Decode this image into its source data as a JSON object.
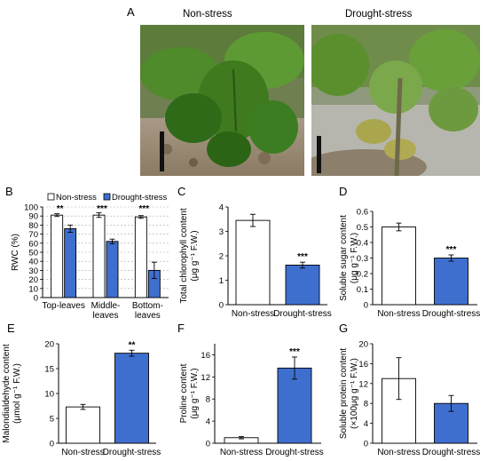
{
  "colors": {
    "nonstress": "#ffffff",
    "drought": "#3f6fce",
    "axis": "#000000"
  },
  "panel_A": {
    "letter": "A",
    "left_title": "Non-stress",
    "right_title": "Drought-stress"
  },
  "chart_data": [
    {
      "id": "B",
      "letter": "B",
      "type": "bar",
      "categories": [
        [
          "Top-leaves"
        ],
        [
          "Middle-",
          "leaves"
        ],
        [
          "Bottom-",
          "leaves"
        ]
      ],
      "series": [
        {
          "name": "Non-stress",
          "values": [
            91,
            91,
            89
          ],
          "errors": [
            1.5,
            2.5,
            1.5
          ]
        },
        {
          "name": "Drought-stress",
          "values": [
            76,
            62,
            30
          ],
          "errors": [
            4,
            2.5,
            9
          ]
        }
      ],
      "significance": [
        "**",
        "***",
        "***"
      ],
      "ylabel": [
        "RWC (%)"
      ],
      "ylim": [
        0,
        100
      ],
      "yticks": [
        0,
        10,
        20,
        30,
        40,
        50,
        60,
        70,
        80,
        90,
        100
      ],
      "grid": true,
      "legend": "top",
      "legend_labels": [
        "Non-stress",
        "Drought-stress"
      ]
    },
    {
      "id": "C",
      "letter": "C",
      "type": "bar",
      "categories": [
        "Non-stress",
        "Drought-stress"
      ],
      "values": [
        3.45,
        1.62
      ],
      "errors": [
        0.25,
        0.12
      ],
      "significance": [
        "",
        "***"
      ],
      "ylabel": [
        "Total chlorophyll content",
        "(μg g⁻¹ F.W.)"
      ],
      "ylim": [
        0,
        4
      ],
      "yticks": [
        0,
        1,
        2,
        3,
        4
      ]
    },
    {
      "id": "D",
      "letter": "D",
      "type": "bar",
      "categories": [
        "Non-stress",
        "Drought-stress"
      ],
      "values": [
        0.5,
        0.3
      ],
      "errors": [
        0.025,
        0.02
      ],
      "significance": [
        "",
        "***"
      ],
      "ylabel": [
        "Soluble sugar content",
        "(μg g⁻¹ F.W.)"
      ],
      "ylim": [
        0,
        0.6
      ],
      "yticks": [
        "0",
        "0.1",
        "0.2",
        "0.3",
        "0.4",
        "0.5",
        "0.6"
      ]
    },
    {
      "id": "E",
      "letter": "E",
      "type": "bar",
      "categories": [
        "Non-stress",
        "Drought-stress"
      ],
      "values": [
        7.3,
        18.1
      ],
      "errors": [
        0.5,
        0.6
      ],
      "significance": [
        "",
        "**"
      ],
      "ylabel": [
        "Malondialdehyde content",
        "(μmol g⁻¹ F.W.)"
      ],
      "ylim": [
        0,
        20
      ],
      "yticks": [
        0,
        5,
        10,
        15,
        20
      ]
    },
    {
      "id": "F",
      "letter": "F",
      "type": "bar",
      "categories": [
        "Non-stress",
        "Drought-stress"
      ],
      "values": [
        1.0,
        13.6
      ],
      "errors": [
        0.2,
        2.0
      ],
      "significance": [
        "",
        "***"
      ],
      "ylabel": [
        "Proline content",
        "(μg g⁻¹ F.W.)"
      ],
      "ylim": [
        0,
        18
      ],
      "yticks": [
        0,
        4,
        8,
        12,
        16
      ]
    },
    {
      "id": "G",
      "letter": "G",
      "type": "bar",
      "categories": [
        "Non-stress",
        "Drought-stress"
      ],
      "values": [
        13.0,
        8.0
      ],
      "errors": [
        4.2,
        1.6
      ],
      "significance": [
        "",
        ""
      ],
      "ylabel": [
        "Soluble protein content",
        "(×100μg g⁻¹ F.W.)"
      ],
      "ylim": [
        0,
        20
      ],
      "yticks": [
        0,
        4,
        8,
        12,
        16,
        20
      ]
    }
  ]
}
